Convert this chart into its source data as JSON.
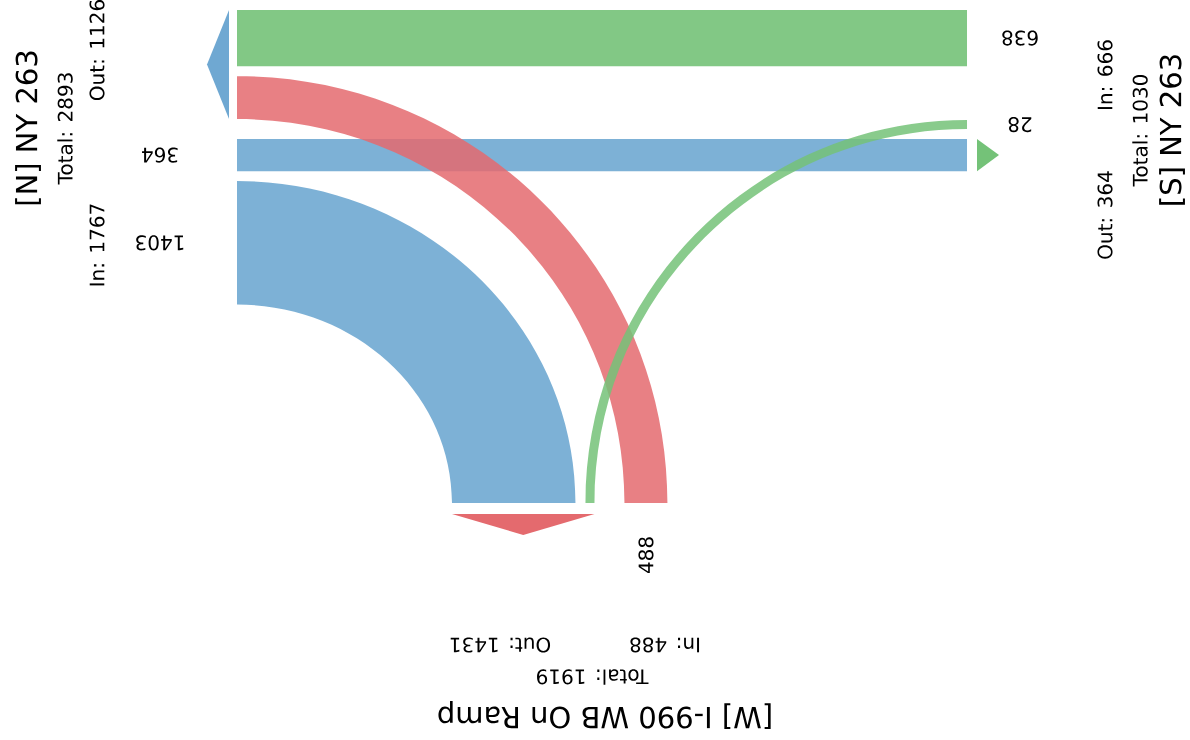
{
  "chart_data": {
    "type": "other",
    "categories": [
      "[N] NY 263",
      "[S] NY 263",
      "[W] I-990 WB On Ramp"
    ],
    "series": [
      {
        "values": [
          null,
          638,
          488
        ],
        "colors": [
          null,
          "#74c278",
          "#e46a6e"
        ]
      },
      {
        "values": [
          364,
          null,
          null
        ],
        "colors": [
          "#6fa8d2",
          null,
          null
        ]
      },
      {
        "values": [
          1403,
          28,
          null
        ],
        "colors": [
          "#6fa8d2",
          "#74c278",
          null
        ]
      }
    ],
    "data_labels": true,
    "annotations": [
      "Total: 2893",
      "In: 1767",
      "Out: 1126",
      "Total: 1030",
      "In: 666",
      "Out: 364",
      "Total: 1919",
      "In: 488",
      "Out: 1431"
    ]
  }
}
